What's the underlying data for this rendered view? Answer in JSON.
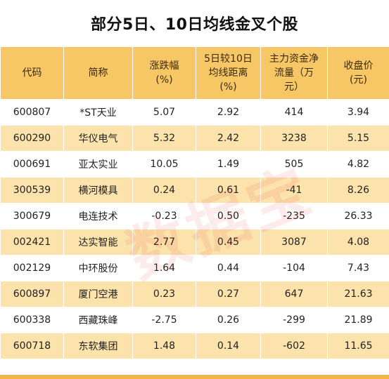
{
  "title": "部分5日、10日均线金叉个股",
  "table": {
    "headers": {
      "code": "代码",
      "name": "简称",
      "change_line1": "涨跌幅",
      "change_line2": "(%)",
      "ma_line1": "5日较10日",
      "ma_line2": "均线距离",
      "ma_line3": "(%)",
      "flow_line1": "主力资金净",
      "flow_line2": "流量（万",
      "flow_line3": "元）",
      "close_line1": "收盘价",
      "close_line2": "(元)"
    },
    "rows": [
      {
        "code": "600807",
        "name": "*ST天业",
        "change": "5.07",
        "ma_gap": "2.92",
        "net_flow": "414",
        "close": "3.94"
      },
      {
        "code": "600290",
        "name": "华仪电气",
        "change": "5.32",
        "ma_gap": "2.42",
        "net_flow": "3238",
        "close": "5.15"
      },
      {
        "code": "000691",
        "name": "亚太实业",
        "change": "10.05",
        "ma_gap": "1.49",
        "net_flow": "505",
        "close": "4.82"
      },
      {
        "code": "300539",
        "name": "横河模具",
        "change": "0.24",
        "ma_gap": "0.61",
        "net_flow": "-41",
        "close": "8.26"
      },
      {
        "code": "300679",
        "name": "电连技术",
        "change": "-0.23",
        "ma_gap": "0.50",
        "net_flow": "-235",
        "close": "26.33"
      },
      {
        "code": "002421",
        "name": "达实智能",
        "change": "2.77",
        "ma_gap": "0.45",
        "net_flow": "3087",
        "close": "4.08"
      },
      {
        "code": "002129",
        "name": "中环股份",
        "change": "1.64",
        "ma_gap": "0.44",
        "net_flow": "-104",
        "close": "7.43"
      },
      {
        "code": "600897",
        "name": "厦门空港",
        "change": "0.23",
        "ma_gap": "0.27",
        "net_flow": "647",
        "close": "21.63"
      },
      {
        "code": "600338",
        "name": "西藏珠峰",
        "change": "-2.75",
        "ma_gap": "0.26",
        "net_flow": "-299",
        "close": "21.89"
      },
      {
        "code": "600718",
        "name": "东软集团",
        "change": "1.48",
        "ma_gap": "0.14",
        "net_flow": "-602",
        "close": "11.65"
      }
    ]
  },
  "watermark": "数据宝",
  "colors": {
    "header_bg": "#f7c766",
    "stripe_bg": "#fbe3ab",
    "watermark": "#e63c3c"
  }
}
